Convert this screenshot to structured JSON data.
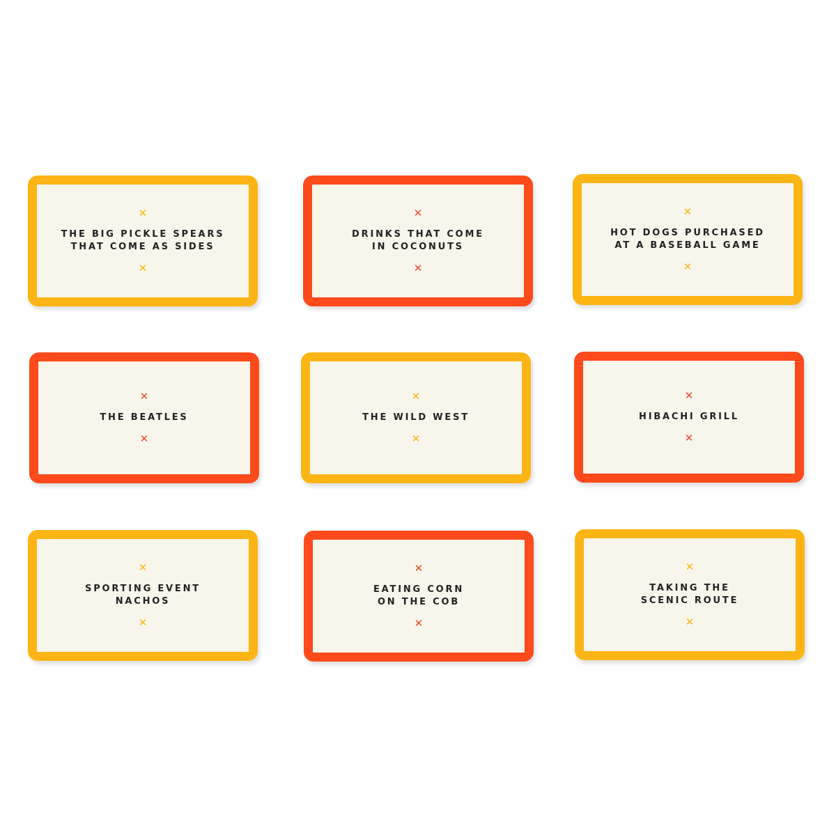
{
  "colors": {
    "yellow": "#fdb515",
    "red": "#ff4a1c",
    "card_face": "#f8f5ea"
  },
  "cards": [
    {
      "text": "THE BIG PICKLE SPEARS\nTHAT COME AS SIDES",
      "color": "yellow",
      "mark": "✕"
    },
    {
      "text": "DRINKS THAT COME\nIN COCONUTS",
      "color": "red",
      "mark": "✕"
    },
    {
      "text": "HOT DOGS PURCHASED\nAT A BASEBALL GAME",
      "color": "yellow",
      "mark": "✕"
    },
    {
      "text": "THE BEATLES",
      "color": "red",
      "mark": "✕"
    },
    {
      "text": "THE WILD WEST",
      "color": "yellow",
      "mark": "✕"
    },
    {
      "text": "HIBACHI GRILL",
      "color": "red",
      "mark": "✕"
    },
    {
      "text": "SPORTING EVENT\nNACHOS",
      "color": "yellow",
      "mark": "✕"
    },
    {
      "text": "EATING CORN\nON THE COB",
      "color": "red",
      "mark": "✕"
    },
    {
      "text": "TAKING THE\nSCENIC ROUTE",
      "color": "yellow",
      "mark": "✕"
    }
  ]
}
